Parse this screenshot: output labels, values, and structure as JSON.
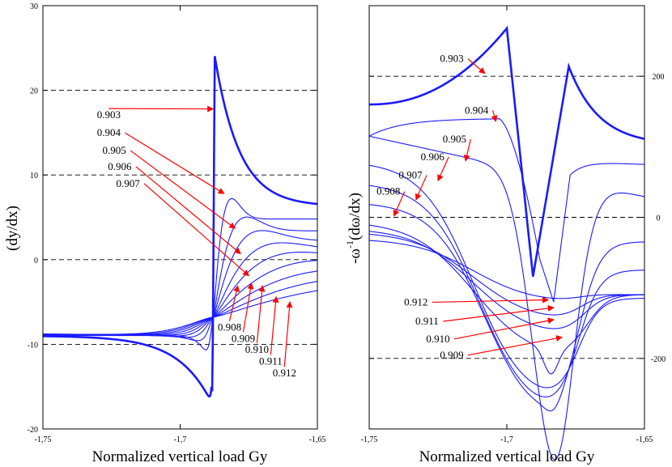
{
  "chart_data": [
    {
      "type": "line",
      "panel": "left",
      "xlabel": "Normalized vertical load Gy",
      "ylabel": "(dy/dx)",
      "xlim": [
        -1.75,
        -1.65
      ],
      "ylim": [
        -20,
        30
      ],
      "xticks": [
        "-1,75",
        "-1,7",
        "-1,65"
      ],
      "yticks": [
        "-20",
        "-10",
        "0",
        "10",
        "20",
        "30"
      ],
      "dashed_lines": [
        20,
        10,
        0,
        -10
      ],
      "series": [
        {
          "name": "0.903",
          "label_pos": [
            -1.726,
            16.7
          ],
          "arrow_to": [
            -1.688,
            17.8
          ]
        },
        {
          "name": "0.904",
          "label_pos": [
            -1.726,
            14.6
          ],
          "arrow_to": [
            -1.684,
            7.8
          ]
        },
        {
          "name": "0.905",
          "label_pos": [
            -1.724,
            12.5
          ],
          "arrow_to": [
            -1.68,
            3.7
          ]
        },
        {
          "name": "0.906",
          "label_pos": [
            -1.722,
            10.6
          ],
          "arrow_to": [
            -1.678,
            0.7
          ]
        },
        {
          "name": "0.907",
          "label_pos": [
            -1.719,
            8.6
          ],
          "arrow_to": [
            -1.675,
            -1.9
          ]
        },
        {
          "name": "0.908",
          "label_pos": [
            -1.682,
            -8.4
          ],
          "arrow_to": [
            -1.679,
            -3.1
          ]
        },
        {
          "name": "0.909",
          "label_pos": [
            -1.677,
            -9.7
          ],
          "arrow_to": [
            -1.674,
            -2.8
          ]
        },
        {
          "name": "0.910",
          "label_pos": [
            -1.672,
            -11.0
          ],
          "arrow_to": [
            -1.67,
            -3.1
          ]
        },
        {
          "name": "0.911",
          "label_pos": [
            -1.667,
            -12.4
          ],
          "arrow_to": [
            -1.665,
            -4.4
          ]
        },
        {
          "name": "0.912",
          "label_pos": [
            -1.662,
            -13.8
          ],
          "arrow_to": [
            -1.66,
            -5.0
          ]
        }
      ]
    },
    {
      "type": "line",
      "panel": "right",
      "xlabel": "Normalized vertical load Gy",
      "ylabel": "-ω⁻¹(dω/dx)",
      "ylabel_main": "-ω",
      "ylabel_sup": "-1",
      "ylabel_rest": "(dω/dx)",
      "xlim": [
        -1.75,
        -1.65
      ],
      "ylim": [
        -300,
        300
      ],
      "xticks": [
        "-1,75",
        "-1,7",
        "-1,65"
      ],
      "yticks": [
        "-200",
        "0",
        "200"
      ],
      "dashed_lines": [
        200,
        0,
        -200
      ],
      "series": [
        {
          "name": "0.903",
          "label_pos": [
            -1.72,
            220
          ],
          "arrow_to": [
            -1.708,
            204
          ]
        },
        {
          "name": "0.904",
          "label_pos": [
            -1.711,
            147
          ],
          "arrow_to": [
            -1.704,
            136
          ]
        },
        {
          "name": "0.905",
          "label_pos": [
            -1.719,
            106
          ],
          "arrow_to": [
            -1.715,
            80
          ]
        },
        {
          "name": "0.906",
          "label_pos": [
            -1.727,
            81
          ],
          "arrow_to": [
            -1.725,
            52
          ]
        },
        {
          "name": "0.907",
          "label_pos": [
            -1.735,
            55
          ],
          "arrow_to": [
            -1.733,
            25
          ]
        },
        {
          "name": "0.908",
          "label_pos": [
            -1.743,
            32
          ],
          "arrow_to": [
            -1.741,
            2
          ]
        },
        {
          "name": "0.912",
          "label_pos": [
            -1.733,
            -125
          ],
          "arrow_to": [
            -1.685,
            -117
          ]
        },
        {
          "name": "0.911",
          "label_pos": [
            -1.729,
            -152
          ],
          "arrow_to": [
            -1.683,
            -128
          ]
        },
        {
          "name": "0.910",
          "label_pos": [
            -1.725,
            -177
          ],
          "arrow_to": [
            -1.683,
            -145
          ]
        },
        {
          "name": "0.909",
          "label_pos": [
            -1.72,
            -200
          ],
          "arrow_to": [
            -1.68,
            -170
          ]
        }
      ]
    }
  ]
}
